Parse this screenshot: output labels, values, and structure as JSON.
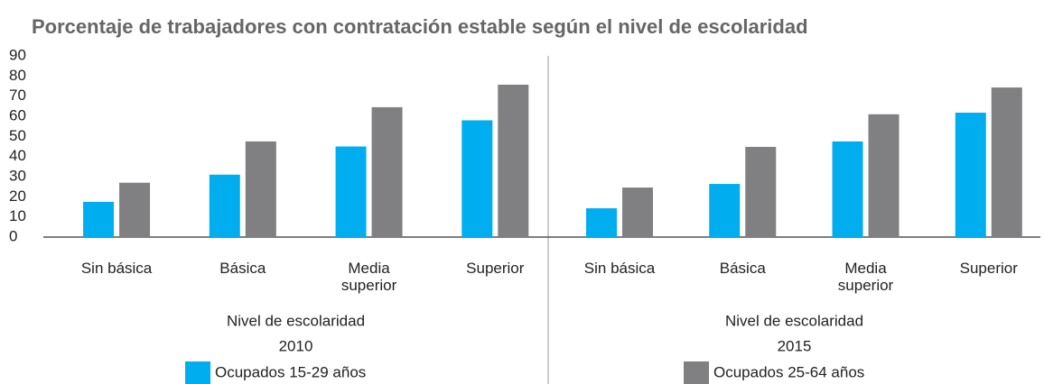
{
  "chart_data": {
    "type": "bar",
    "title": "Porcentaje de trabajadores con contratación estable según el nivel de escolaridad",
    "ylim": [
      0,
      90
    ],
    "yticks": [
      0,
      10,
      20,
      30,
      40,
      50,
      60,
      70,
      80,
      90
    ],
    "x_label": "Nivel de escolaridad",
    "categories": [
      "Sin básica",
      "Básica",
      "Media superior",
      "Superior"
    ],
    "series": [
      {
        "name": "Ocupados 15-29 años",
        "color": "#00aeef"
      },
      {
        "name": "Ocupados 25-64 años",
        "color": "#808083"
      }
    ],
    "panels": [
      {
        "label": "2010",
        "values": [
          [
            17.5,
            31,
            45,
            58
          ],
          [
            27,
            47.5,
            64.5,
            75.7
          ]
        ]
      },
      {
        "label": "2015",
        "values": [
          [
            14.3,
            26.4,
            47.5,
            61.8
          ],
          [
            24.6,
            44.8,
            61,
            74.3
          ]
        ]
      }
    ]
  }
}
